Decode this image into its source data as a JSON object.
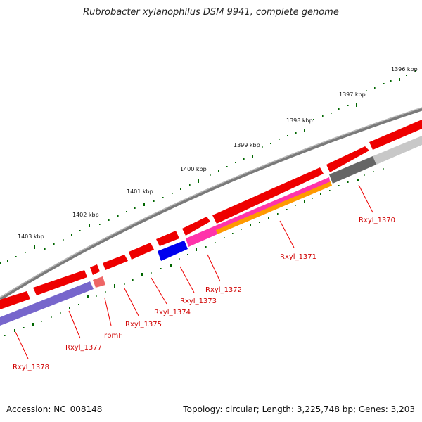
{
  "title": "Rubrobacter xylanophilus DSM 9941, complete genome",
  "footer": {
    "accession": "Accession: NC_008148",
    "topology": "Topology: circular; Length: 3,225,748 bp; Genes: 3,203"
  },
  "colors": {
    "backbone": "#808080",
    "gene_red": "#ee0000",
    "tick_green": "#006600",
    "label_red": "#dd0000",
    "blue": "#0000ee",
    "magenta": "#ff33aa",
    "orange": "#ff9900",
    "purple": "#7766cc",
    "dark_gray": "#666666",
    "light_gray": "#c8c8c8",
    "pink": "#ee6666"
  },
  "scale": {
    "unit": "kbp",
    "labels": [
      "1396 kbp",
      "1397 kbp",
      "1398 kbp",
      "1399 kbp",
      "1400 kbp",
      "1401 kbp",
      "1402 kbp",
      "1403 kbp"
    ]
  },
  "genes": [
    {
      "name": "Rxyl_1370",
      "color": "dark_gray"
    },
    {
      "name": "Rxyl_1371",
      "color": "orange"
    },
    {
      "name": "Rxyl_1372",
      "color": "magenta"
    },
    {
      "name": "Rxyl_1373",
      "color": "blue"
    },
    {
      "name": "Rxyl_1374",
      "color": "gene_red"
    },
    {
      "name": "Rxyl_1375",
      "color": "gene_red"
    },
    {
      "name": "rpmF",
      "color": "pink"
    },
    {
      "name": "Rxyl_1377",
      "color": "purple"
    },
    {
      "name": "Rxyl_1378",
      "color": "purple"
    }
  ]
}
